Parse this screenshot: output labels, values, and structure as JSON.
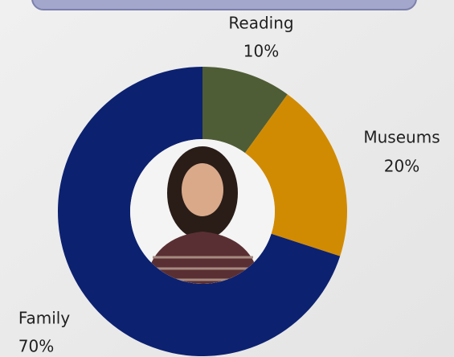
{
  "chart_data": {
    "type": "donut",
    "categories": [
      "Reading",
      "Museums",
      "Family"
    ],
    "values": [
      10,
      20,
      70
    ],
    "value_labels": [
      "10%",
      "20%",
      "70%"
    ],
    "colors": [
      "#4f5d36",
      "#d18b02",
      "#0c2170"
    ]
  }
}
